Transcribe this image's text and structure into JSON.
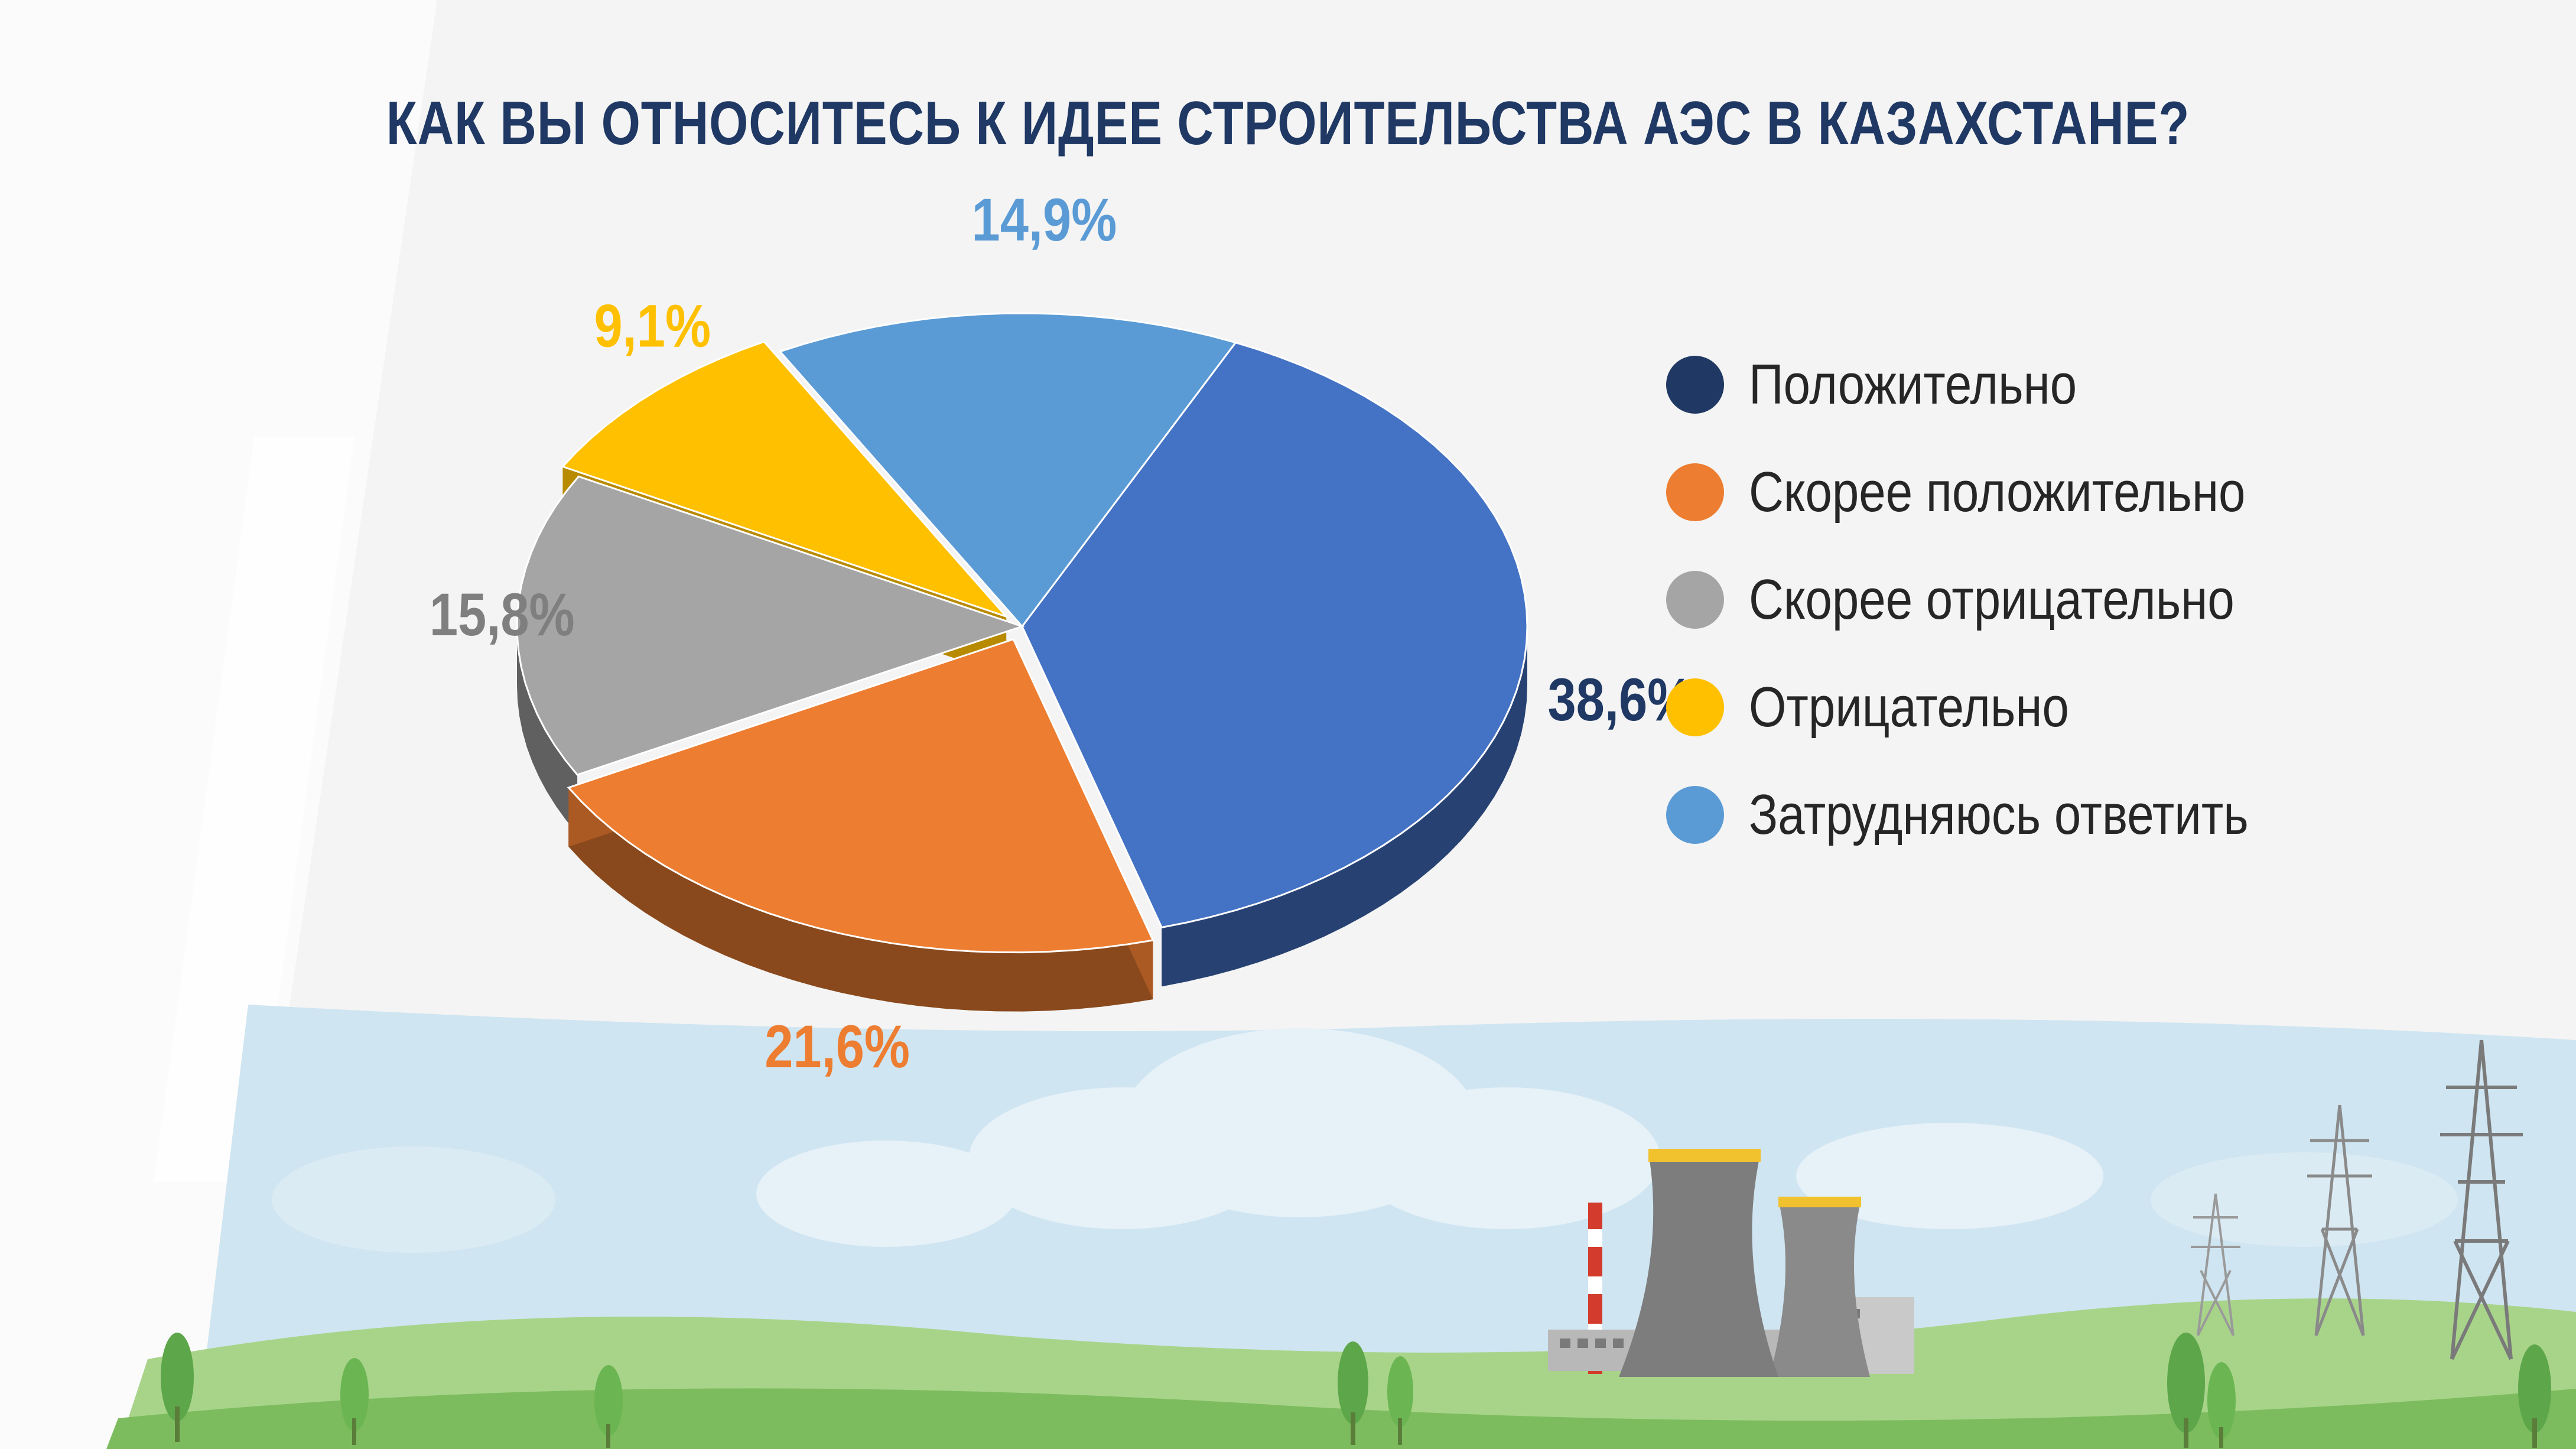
{
  "title": "КАК ВЫ ОТНОСИТЕСЬ К ИДЕЕ СТРОИТЕЛЬСТВА АЭС В КАЗАХСТАНЕ?",
  "colors": {
    "title": "#1f3864",
    "background": "#f4f4f4",
    "sky": "#cfe5f1",
    "hill_light": "#a8d48a",
    "hill_dark": "#7cbc5e"
  },
  "chart_data": {
    "type": "pie",
    "title": "КАК ВЫ ОТНОСИТЕСЬ К ИДЕЕ СТРОИТЕЛЬСТВА АЭС В КАЗАХСТАНЕ?",
    "legend_position": "right",
    "slices": [
      {
        "label": "Положительно",
        "value": 38.6,
        "display": "38,6%",
        "color": "#4472c4",
        "legend_color": "#1f3864",
        "label_color": "#1f3864",
        "exploded": false
      },
      {
        "label": "Скорее положительно",
        "value": 21.6,
        "display": "21,6%",
        "color": "#ed7d31",
        "legend_color": "#ed7d31",
        "label_color": "#ed7d31",
        "exploded": true
      },
      {
        "label": "Скорее отрицательно",
        "value": 15.8,
        "display": "15,8%",
        "color": "#a5a5a5",
        "legend_color": "#a5a5a5",
        "label_color": "#7f7f7f",
        "exploded": false
      },
      {
        "label": "Отрицательно",
        "value": 9.1,
        "display": "9,1%",
        "color": "#ffc000",
        "legend_color": "#ffc000",
        "label_color": "#ffc000",
        "exploded": true
      },
      {
        "label": "Затрудняюсь ответить",
        "value": 14.9,
        "display": "14,9%",
        "color": "#5b9bd5",
        "legend_color": "#5b9bd5",
        "label_color": "#5b9bd5",
        "exploded": false
      }
    ]
  },
  "illustration": {
    "icons": [
      "cloud-icon",
      "tree-icon",
      "power-plant-icon",
      "cooling-tower-icon",
      "smokestack-icon",
      "power-pylon-icon"
    ]
  }
}
